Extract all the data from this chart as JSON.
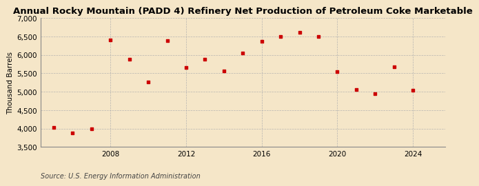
{
  "title": "Annual Rocky Mountain (PADD 4) Refinery Net Production of Petroleum Coke Marketable",
  "ylabel": "Thousand Barrels",
  "source": "Source: U.S. Energy Information Administration",
  "background_color": "#f5e6c8",
  "marker_color": "#cc0000",
  "years": [
    2005,
    2006,
    2007,
    2008,
    2009,
    2010,
    2011,
    2012,
    2013,
    2014,
    2015,
    2016,
    2017,
    2018,
    2019,
    2020,
    2021,
    2022,
    2023,
    2024
  ],
  "values": [
    4020,
    3880,
    3990,
    6400,
    5890,
    5270,
    6390,
    5650,
    5880,
    5560,
    6050,
    6360,
    6500,
    6620,
    6500,
    5540,
    5060,
    4940,
    5680,
    5040
  ],
  "ylim": [
    3500,
    7000
  ],
  "yticks": [
    3500,
    4000,
    4500,
    5000,
    5500,
    6000,
    6500,
    7000
  ],
  "xticks": [
    2008,
    2012,
    2016,
    2020,
    2024
  ],
  "xlim": [
    2004.3,
    2025.7
  ],
  "title_fontsize": 9.5,
  "label_fontsize": 7.5,
  "tick_fontsize": 7.5,
  "source_fontsize": 7.0
}
